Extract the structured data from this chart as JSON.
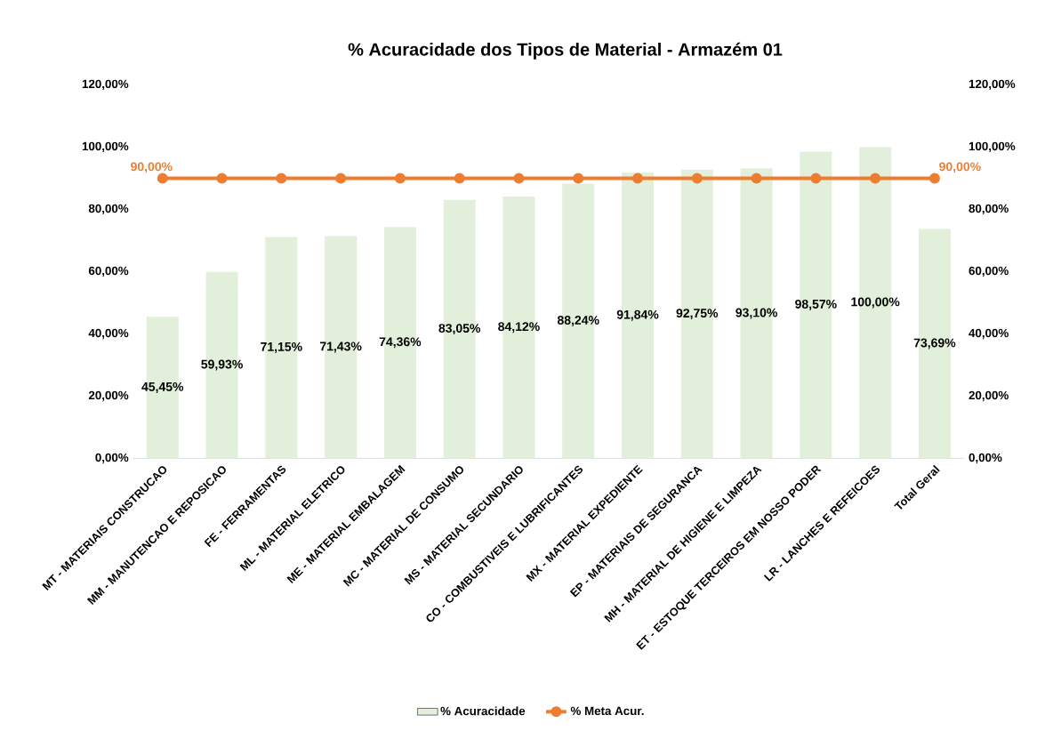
{
  "chart_data": {
    "type": "bar",
    "title": "% Acuracidade dos Tipos de Material - Armazém 01",
    "categories": [
      "MT - MATERIAIS CONSTRUCAO",
      "MM - MANUTENCAO E REPOSICAO",
      "FE - FERRAMENTAS",
      "ML - MATERIAL ELETRICO",
      "ME - MATERIAL EMBALAGEM",
      "MC - MATERIAL DE CONSUMO",
      "MS - MATERIAL SECUNDARIO",
      "CO - COMBUSTIVEIS E LUBRIFICANTES",
      "MX - MATERIAL EXPEDIENTE",
      "EP - MATERIAIS DE SEGURANCA",
      "MH - MATERIAL DE HIGIENE E LIMPEZA",
      "ET - ESTOQUE TERCEIROS EM NOSSO PODER",
      "LR - LANCHES E REFEICOES",
      "Total Geral"
    ],
    "series": [
      {
        "name": "% Acuracidade",
        "color": "#e2efda",
        "values": [
          45.45,
          59.93,
          71.15,
          71.43,
          74.36,
          83.05,
          84.12,
          88.24,
          91.84,
          92.75,
          93.1,
          98.57,
          100.0,
          73.69
        ],
        "value_labels": [
          "45,45%",
          "59,93%",
          "71,15%",
          "71,43%",
          "74,36%",
          "83,05%",
          "84,12%",
          "88,24%",
          "91,84%",
          "92,75%",
          "93,10%",
          "98,57%",
          "100,00%",
          "73,69%"
        ]
      },
      {
        "name": "% Meta Acur.",
        "type": "line",
        "axis": "y2",
        "color": "#ed7d31",
        "values": [
          90,
          90,
          90,
          90,
          90,
          90,
          90,
          90,
          90,
          90,
          90,
          90,
          90,
          90
        ],
        "value_labels": [
          "90,00%",
          null,
          null,
          null,
          null,
          null,
          null,
          null,
          null,
          null,
          null,
          null,
          null,
          "90,00%"
        ]
      }
    ],
    "ylim": [
      0,
      120
    ],
    "yticks": [
      {
        "value": 0,
        "label": "0,00%"
      },
      {
        "value": 20,
        "label": "20,00%"
      },
      {
        "value": 40,
        "label": "40,00%"
      },
      {
        "value": 60,
        "label": "60,00%"
      },
      {
        "value": 80,
        "label": "80,00%"
      },
      {
        "value": 100,
        "label": "100,00%"
      },
      {
        "value": 120,
        "label": "120,00%"
      }
    ],
    "y2lim": [
      0,
      120
    ],
    "y2ticks": [
      {
        "value": 0,
        "label": "0,00%"
      },
      {
        "value": 20,
        "label": "20,00%"
      },
      {
        "value": 40,
        "label": "40,00%"
      },
      {
        "value": 60,
        "label": "60,00%"
      },
      {
        "value": 80,
        "label": "80,00%"
      },
      {
        "value": 100,
        "label": "100,00%"
      },
      {
        "value": 120,
        "label": "120,00%"
      }
    ],
    "marker": "circle",
    "line_style": "solid",
    "legend": "bottom"
  }
}
